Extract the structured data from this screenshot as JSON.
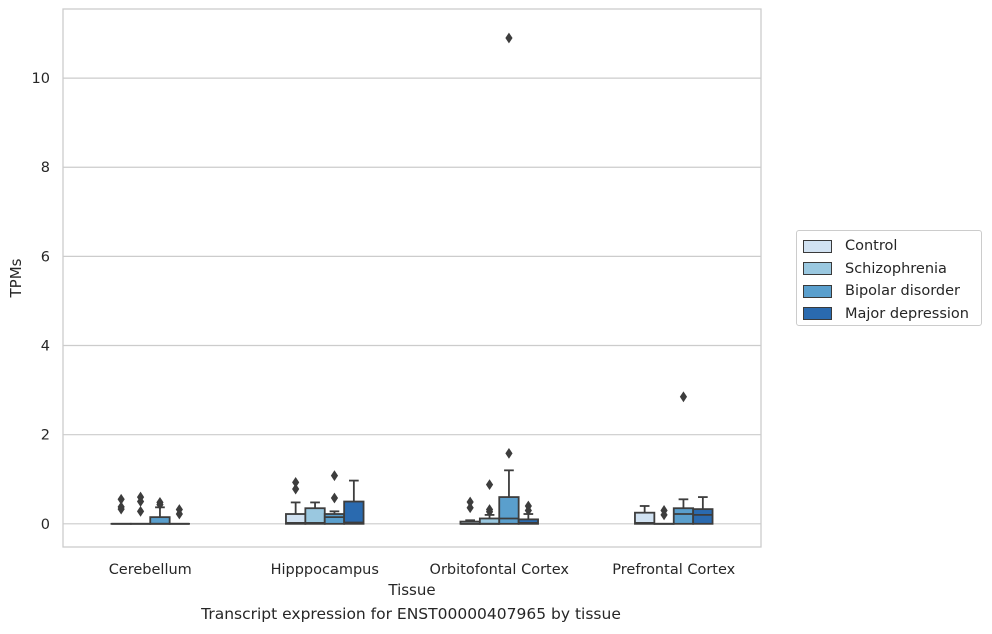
{
  "chart_data": {
    "type": "box",
    "title": "Transcript expression for ENST00000407965 by tissue",
    "xlabel": "Tissue",
    "ylabel": "TPMs",
    "ylim": [
      -0.52,
      11.55
    ],
    "yticks": [
      0,
      2,
      4,
      6,
      8,
      10
    ],
    "grid": "horizontal",
    "legend_position": "right",
    "categories": [
      "Cerebellum",
      "Hipppocampus",
      "Orbitofontal Cortex",
      "Prefrontal Cortex"
    ],
    "series": [
      {
        "name": "Control",
        "color": "#d1e2f2",
        "boxes": [
          {
            "q1": 0,
            "median": 0,
            "q3": 0,
            "whisker_low": 0,
            "whisker_high": 0,
            "outliers": [
              0.55,
              0.38,
              0.33
            ]
          },
          {
            "q1": 0,
            "median": 0.02,
            "q3": 0.22,
            "whisker_low": 0,
            "whisker_high": 0.48,
            "outliers": [
              0.93,
              0.78
            ]
          },
          {
            "q1": 0,
            "median": 0,
            "q3": 0.05,
            "whisker_low": 0,
            "whisker_high": 0.08,
            "outliers": [
              0.49,
              0.36
            ]
          },
          {
            "q1": 0,
            "median": 0.02,
            "q3": 0.25,
            "whisker_low": 0,
            "whisker_high": 0.4,
            "outliers": []
          }
        ]
      },
      {
        "name": "Schizophrenia",
        "color": "#9ac8e0",
        "boxes": [
          {
            "q1": 0,
            "median": 0,
            "q3": 0,
            "whisker_low": 0,
            "whisker_high": 0,
            "outliers": [
              0.6,
              0.5,
              0.28
            ]
          },
          {
            "q1": 0,
            "median": 0.02,
            "q3": 0.35,
            "whisker_low": 0,
            "whisker_high": 0.48,
            "outliers": []
          },
          {
            "q1": 0,
            "median": 0,
            "q3": 0.12,
            "whisker_low": 0,
            "whisker_high": 0.2,
            "outliers": [
              0.88,
              0.32,
              0.27
            ]
          },
          {
            "q1": 0,
            "median": 0,
            "q3": 0,
            "whisker_low": 0,
            "whisker_high": 0,
            "outliers": [
              0.3,
              0.2
            ]
          }
        ]
      },
      {
        "name": "Bipolar disorder",
        "color": "#5a9fcd",
        "boxes": [
          {
            "q1": 0,
            "median": 0,
            "q3": 0.15,
            "whisker_low": 0,
            "whisker_high": 0.37,
            "outliers": [
              0.48,
              0.43
            ]
          },
          {
            "q1": 0,
            "median": 0.15,
            "q3": 0.22,
            "whisker_low": 0,
            "whisker_high": 0.28,
            "outliers": [
              1.08,
              0.58
            ]
          },
          {
            "q1": 0,
            "median": 0.12,
            "q3": 0.6,
            "whisker_low": 0,
            "whisker_high": 1.2,
            "outliers": [
              10.9,
              1.58
            ]
          },
          {
            "q1": 0,
            "median": 0.22,
            "q3": 0.35,
            "whisker_low": 0,
            "whisker_high": 0.55,
            "outliers": [
              2.85
            ]
          }
        ]
      },
      {
        "name": "Major depression",
        "color": "#2a6aaf",
        "boxes": [
          {
            "q1": 0,
            "median": 0,
            "q3": 0,
            "whisker_low": 0,
            "whisker_high": 0,
            "outliers": [
              0.32,
              0.22
            ]
          },
          {
            "q1": 0,
            "median": 0.03,
            "q3": 0.5,
            "whisker_low": 0,
            "whisker_high": 0.97,
            "outliers": []
          },
          {
            "q1": 0,
            "median": 0.02,
            "q3": 0.1,
            "whisker_low": 0,
            "whisker_high": 0.22,
            "outliers": [
              0.4,
              0.3
            ]
          },
          {
            "q1": 0,
            "median": 0.2,
            "q3": 0.33,
            "whisker_low": 0,
            "whisker_high": 0.6,
            "outliers": []
          }
        ]
      }
    ]
  }
}
